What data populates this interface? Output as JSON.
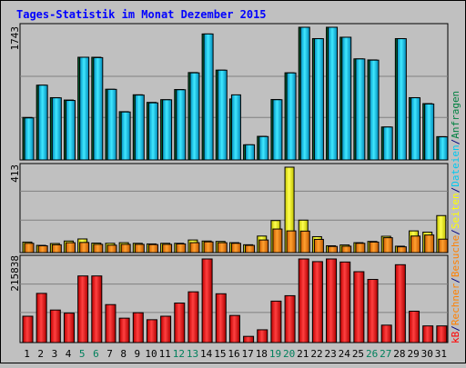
{
  "chart_data": {
    "type": "bar",
    "title": "Tages-Statistik im Monat Dezember 2015",
    "days": [
      "1",
      "2",
      "3",
      "4",
      "5",
      "6",
      "7",
      "8",
      "9",
      "10",
      "11",
      "12",
      "13",
      "14",
      "15",
      "16",
      "17",
      "18",
      "19",
      "20",
      "21",
      "22",
      "23",
      "24",
      "25",
      "26",
      "27",
      "28",
      "29",
      "30",
      "31"
    ],
    "weekend_days": [
      "5",
      "6",
      "12",
      "13",
      "19",
      "20",
      "26",
      "27"
    ],
    "panels": [
      {
        "id": "top",
        "ymax_label": "1743",
        "ylim": [
          0,
          1743
        ],
        "series": [
          {
            "name": "Anfragen",
            "color": "#008040",
            "values": [
              558,
              982,
              818,
              787,
              1349,
              1349,
              929,
              634,
              856,
              756,
              792,
              925,
              1148,
              1655,
              1180,
              801,
              199,
              310,
              794,
              1145,
              1743,
              1594,
              1743,
              1612,
              1328,
              1314,
              433,
              1594,
              818,
              740,
              306
            ]
          },
          {
            "name": "Dateien",
            "color": "#00c8f0",
            "values": [
              552,
              982,
              816,
              781,
              1349,
              1344,
              927,
              630,
              852,
              750,
              790,
              922,
              1144,
              1655,
              1179,
              855,
              199,
              307,
              791,
              1143,
              1743,
              1593,
              1743,
              1612,
              1327,
              1311,
              432,
              1593,
              817,
              735,
              303
            ]
          }
        ]
      },
      {
        "id": "middle",
        "ymax_label": "413",
        "ylim": [
          0,
          413
        ],
        "series": [
          {
            "name": "Seiten",
            "color": "#ffff00",
            "values": [
              51,
              35,
              44,
              56,
              66,
              46,
              45,
              48,
              45,
              42,
              45,
              45,
              61,
              56,
              54,
              48,
              38,
              80,
              155,
              413,
              157,
              77,
              33,
              37,
              48,
              54,
              79,
              31,
              105,
              99,
              179
            ]
          },
          {
            "name": "Besuche",
            "color": "#ff8000",
            "values": [
              45,
              33,
              38,
              48,
              49,
              40,
              36,
              40,
              40,
              39,
              40,
              42,
              48,
              52,
              48,
              45,
              35,
              61,
              114,
              105,
              104,
              64,
              30,
              31,
              45,
              51,
              72,
              28,
              80,
              85,
              65
            ]
          }
        ]
      },
      {
        "id": "bottom",
        "ymax_label": "215838",
        "ylim": [
          0,
          215838
        ],
        "series": [
          {
            "name": "kB",
            "color": "#ff0000",
            "values": [
              68000,
              127000,
              84000,
              76000,
              172000,
              172000,
              98000,
              63000,
              77000,
              59000,
              68000,
              102000,
              131000,
              215838,
              126000,
              70000,
              16000,
              33000,
              107000,
              121000,
              215838,
              209000,
              215838,
              208000,
              183000,
              163000,
              45000,
              201000,
              81000,
              43000,
              43000
            ]
          }
        ]
      }
    ],
    "legend_right": {
      "items": [
        {
          "label": "Anfragen",
          "color": "#008040"
        },
        {
          "label": "/",
          "color": "#000080"
        },
        {
          "label": "Dateien",
          "color": "#00c8f0"
        },
        {
          "label": "/",
          "color": "#000080"
        },
        {
          "label": "Seiten",
          "color": "#ffff00"
        },
        {
          "label": "/",
          "color": "#000080"
        },
        {
          "label": "Besuche",
          "color": "#ff8000"
        },
        {
          "label": "/",
          "color": "#000080"
        },
        {
          "label": "Rechner",
          "color": "#ff8000"
        },
        {
          "label": "/",
          "color": "#000080"
        },
        {
          "label": "kB",
          "color": "#ff0000"
        }
      ]
    },
    "colors": {
      "background": "#c0c0c0",
      "title": "#0000ff",
      "weekend_label": "#00805c",
      "weekday_label": "#000000",
      "grid": "#808080"
    }
  }
}
